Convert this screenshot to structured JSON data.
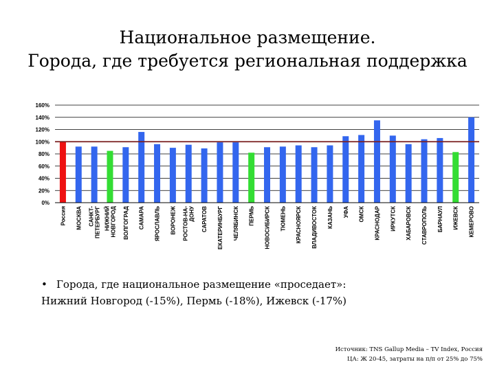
{
  "slide": {
    "title_line1": "Национальное размещение.",
    "title_line2": "Города, где требуется региональная поддержка",
    "bullet_symbol": "•",
    "bullet_line1": "Города, где национальное размещение «проседает»:",
    "bullet_line2": "Нижний Новгород (-15%), Пермь (-18%), Ижевск (-17%)",
    "source_line1": "Источник: TNS Gallup Media – TV Index, Россия",
    "source_line2": "ЦА: Ж 20-45, затраты на п/п от 25% до 75%"
  },
  "colors": {
    "default_bar": "#3366ee",
    "highlight_bar": "#33dd33",
    "russia_bar": "#ee1111",
    "reference_line": "#7a1f1f",
    "grid_line": "#000000"
  },
  "chart_data": {
    "type": "bar",
    "title": "",
    "xlabel": "",
    "ylabel": "",
    "ylim": [
      0,
      160
    ],
    "yticks": [
      "0%",
      "20%",
      "40%",
      "60%",
      "80%",
      "100%",
      "120%",
      "140%",
      "160%"
    ],
    "reference_value": 100,
    "grid": true,
    "categories": [
      "Россия",
      "МОСКВА",
      "САНКТ-ПЕТЕРБУРГ",
      "НИЖНИЙ НОВГОРОД",
      "ВОЛГОГРАД",
      "САМАРА",
      "ЯРОСЛАВЛЬ",
      "ВОРОНЕЖ",
      "РОСТОВ-НА-ДОНУ",
      "САРАТОВ",
      "ЕКАТЕРИНБУРГ",
      "ЧЕЛЯБИНСК",
      "ПЕРМЬ",
      "НОВОСИБИРСК",
      "ТЮМЕНЬ",
      "КРАСНОЯРСК",
      "ВЛАДИВОСТОК",
      "КАЗАНЬ",
      "УФА",
      "ОМСК",
      "КРАСНОДАР",
      "ИРКУТСК",
      "ХАБАРОВСК",
      "СТАВРОПОЛЬ",
      "БАРНАУЛ",
      "ИЖЕВСК",
      "КЕМЕРОВО"
    ],
    "label_lines": [
      [
        "Россия"
      ],
      [
        "МОСКВА"
      ],
      [
        "САНКТ-",
        "ПЕТЕРБУРГ"
      ],
      [
        "НИЖНИЙ",
        "НОВГОРОД"
      ],
      [
        "ВОЛГОГРАД"
      ],
      [
        "САМАРА"
      ],
      [
        "ЯРОСЛАВЛЬ"
      ],
      [
        "ВОРОНЕЖ"
      ],
      [
        "РОСТОВ-НА-",
        "ДОНУ"
      ],
      [
        "САРАТОВ"
      ],
      [
        "ЕКАТЕРИНБУРГ"
      ],
      [
        "ЧЕЛЯБИНСК"
      ],
      [
        "ПЕРМЬ"
      ],
      [
        "НОВОСИБИРСК"
      ],
      [
        "ТЮМЕНЬ"
      ],
      [
        "КРАСНОЯРСК"
      ],
      [
        "ВЛАДИВОСТОК"
      ],
      [
        "КАЗАНЬ"
      ],
      [
        "УФА"
      ],
      [
        "ОМСК"
      ],
      [
        "КРАСНОДАР"
      ],
      [
        "ИРКУТСК"
      ],
      [
        "ХАБАРОВСК"
      ],
      [
        "СТАВРОПОЛЬ"
      ],
      [
        "БАРНАУЛ"
      ],
      [
        "ИЖЕВСК"
      ],
      [
        "КЕМЕРОВО"
      ]
    ],
    "values": [
      100,
      92,
      92,
      85,
      91,
      116,
      96,
      90,
      95,
      89,
      99,
      99,
      82,
      91,
      92,
      94,
      91,
      94,
      109,
      111,
      135,
      110,
      96,
      104,
      106,
      83,
      140
    ],
    "bar_colors": [
      "russia",
      "default",
      "default",
      "highlight",
      "default",
      "default",
      "default",
      "default",
      "default",
      "default",
      "default",
      "default",
      "highlight",
      "default",
      "default",
      "default",
      "default",
      "default",
      "default",
      "default",
      "default",
      "default",
      "default",
      "default",
      "default",
      "highlight",
      "default"
    ]
  }
}
